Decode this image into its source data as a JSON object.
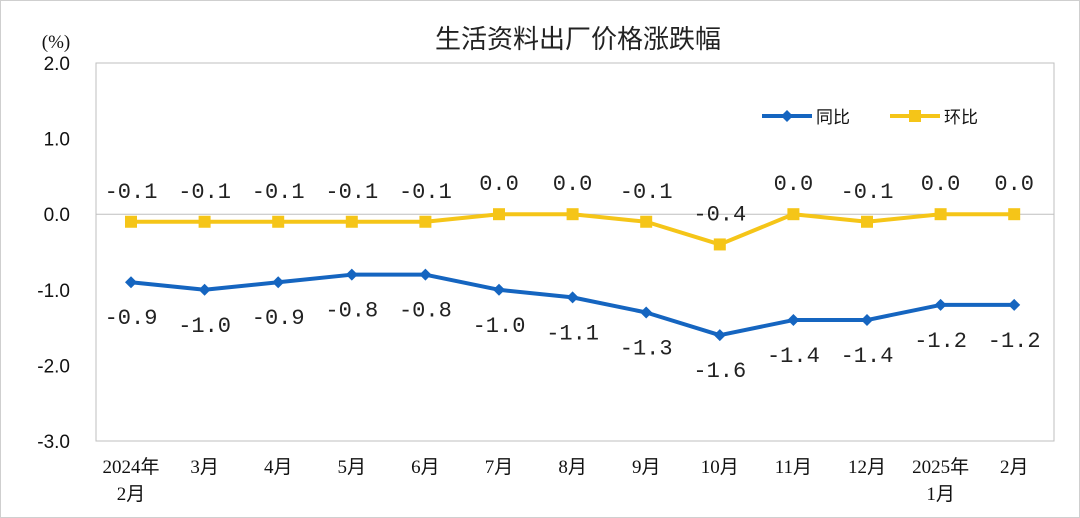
{
  "chart_data": {
    "type": "line",
    "title": "生活资料出厂价格涨跌幅",
    "unit_label": "(%)",
    "ylim": [
      -3.0,
      2.0
    ],
    "yticks": [
      "2.0",
      "1.0",
      "0.0",
      "-1.0",
      "-2.0",
      "-3.0"
    ],
    "ytick_values": [
      2.0,
      1.0,
      0.0,
      -1.0,
      -2.0,
      -3.0
    ],
    "grid": false,
    "legend_position": "top-right",
    "categories": [
      [
        "2024年",
        "2月"
      ],
      [
        "3月"
      ],
      [
        "4月"
      ],
      [
        "5月"
      ],
      [
        "6月"
      ],
      [
        "7月"
      ],
      [
        "8月"
      ],
      [
        "9月"
      ],
      [
        "10月"
      ],
      [
        "11月"
      ],
      [
        "12月"
      ],
      [
        "2025年",
        "1月"
      ],
      [
        "2月"
      ]
    ],
    "series": [
      {
        "name": "同比",
        "color": "#1565c0",
        "marker": "diamond",
        "values": [
          -0.9,
          -1.0,
          -0.9,
          -0.8,
          -0.8,
          -1.0,
          -1.1,
          -1.3,
          -1.6,
          -1.4,
          -1.4,
          -1.2,
          -1.2
        ],
        "labels": [
          "-0.9",
          "-1.0",
          "-0.9",
          "-0.8",
          "-0.8",
          "-1.0",
          "-1.1",
          "-1.3",
          "-1.6",
          "-1.4",
          "-1.4",
          "-1.2",
          "-1.2"
        ]
      },
      {
        "name": "环比",
        "color": "#f5c518",
        "marker": "square",
        "values": [
          -0.1,
          -0.1,
          -0.1,
          -0.1,
          -0.1,
          0.0,
          0.0,
          -0.1,
          -0.4,
          0.0,
          -0.1,
          0.0,
          0.0
        ],
        "labels": [
          "-0.1",
          "-0.1",
          "-0.1",
          "-0.1",
          "-0.1",
          "0.0",
          "0.0",
          "-0.1",
          "-0.4",
          "0.0",
          "-0.1",
          "0.0",
          "0.0"
        ]
      }
    ]
  }
}
